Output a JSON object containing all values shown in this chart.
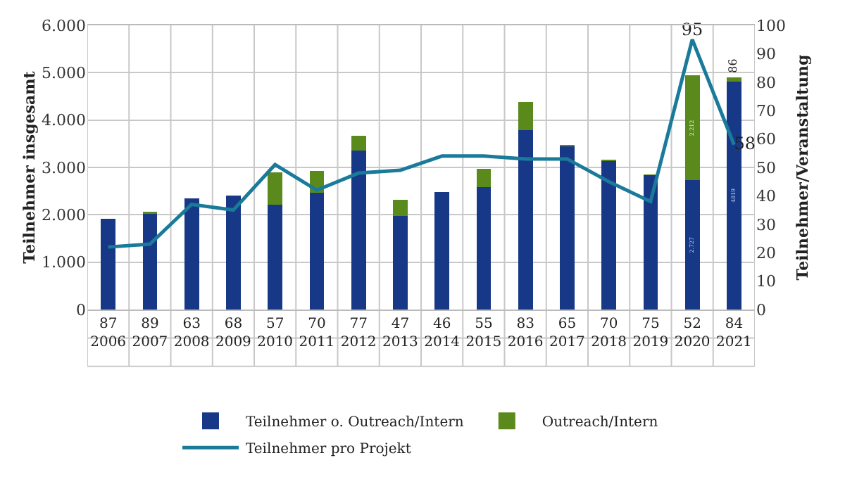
{
  "chart_data": {
    "type": "bar",
    "stacked": true,
    "categories": [
      "87\n2006",
      "89\n2007",
      "63\n2008",
      "68\n2009",
      "57\n2010",
      "70\n2011",
      "77\n2012",
      "47\n2013",
      "46\n2014",
      "55\n2015",
      "83\n2016",
      "65\n2017",
      "70\n2018",
      "75\n2019",
      "52\n2020",
      "84\n2021"
    ],
    "ylabel": "Teilnehmer insgesamt",
    "y2label": "Teilnehmer/Veranstaltung",
    "ylim": [
      0,
      6000
    ],
    "yticks": [
      {
        "value": 0,
        "label": "0"
      },
      {
        "value": 1000,
        "label": "1.000"
      },
      {
        "value": 2000,
        "label": "2.000"
      },
      {
        "value": 3000,
        "label": "3.000"
      },
      {
        "value": 4000,
        "label": "4.000"
      },
      {
        "value": 5000,
        "label": "5.000"
      },
      {
        "value": 6000,
        "label": "6.000"
      }
    ],
    "y2lim": [
      0,
      100
    ],
    "y2ticks": [
      0,
      10,
      20,
      30,
      40,
      50,
      60,
      70,
      80,
      90,
      100
    ],
    "grid": true,
    "legend": "bottom",
    "series": [
      {
        "name": "Teilnehmer o. Outreach/Intern",
        "color": "#173887",
        "values": [
          1920,
          2020,
          2350,
          2400,
          2210,
          2460,
          3360,
          1980,
          2480,
          2580,
          3780,
          3440,
          3130,
          2830,
          2727,
          4819
        ],
        "value_labels": [
          null,
          null,
          null,
          null,
          null,
          null,
          null,
          null,
          null,
          null,
          null,
          null,
          null,
          null,
          "2.727",
          "4819"
        ]
      },
      {
        "name": "Outreach/Intern",
        "color": "#5a8a1c",
        "values": [
          0,
          50,
          0,
          0,
          680,
          460,
          310,
          330,
          0,
          390,
          600,
          30,
          30,
          20,
          2212,
          86
        ],
        "value_labels": [
          null,
          null,
          null,
          null,
          null,
          null,
          null,
          null,
          null,
          null,
          null,
          null,
          null,
          null,
          "2.212",
          "86"
        ]
      },
      {
        "name": "Teilnehmer pro Projekt",
        "type": "line",
        "axis": "y2",
        "color": "#1a7a9a",
        "values": [
          22,
          23,
          37,
          35,
          51,
          42,
          48,
          49,
          54,
          54,
          53,
          53,
          45,
          38,
          95,
          58
        ],
        "value_labels": [
          null,
          null,
          null,
          null,
          null,
          null,
          null,
          null,
          null,
          null,
          null,
          null,
          null,
          null,
          "95",
          "58"
        ]
      }
    ]
  }
}
